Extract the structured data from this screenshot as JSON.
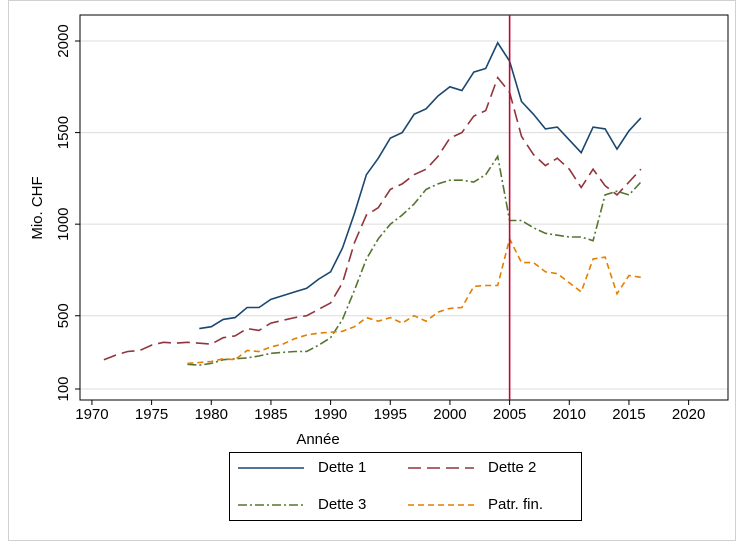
{
  "chart_data": {
    "type": "line",
    "x_label": "Année",
    "y_label": "Mio. CHF",
    "x": [
      1971,
      1972,
      1973,
      1974,
      1975,
      1976,
      1977,
      1978,
      1979,
      1980,
      1981,
      1982,
      1983,
      1984,
      1985,
      1986,
      1987,
      1988,
      1989,
      1990,
      1991,
      1992,
      1993,
      1994,
      1995,
      1996,
      1997,
      1998,
      1999,
      2000,
      2001,
      2002,
      2003,
      2004,
      2005,
      2006,
      2007,
      2008,
      2009,
      2010,
      2011,
      2012,
      2013,
      2014,
      2015,
      2016
    ],
    "series": [
      {
        "name": "Dette 1",
        "color": "#1a476f",
        "dash": "solid",
        "values": [
          null,
          null,
          null,
          null,
          null,
          null,
          null,
          null,
          430,
          440,
          480,
          490,
          545,
          545,
          590,
          610,
          630,
          650,
          700,
          740,
          870,
          1060,
          1270,
          1360,
          1470,
          1500,
          1600,
          1630,
          1700,
          1750,
          1730,
          1830,
          1850,
          1990,
          1890,
          1670,
          1600,
          1520,
          1530,
          1460,
          1390,
          1530,
          1520,
          1410,
          1510,
          1580
        ]
      },
      {
        "name": "Dette 2",
        "color": "#90353b",
        "dash": "longdash",
        "values": [
          260,
          285,
          305,
          310,
          340,
          355,
          350,
          355,
          350,
          345,
          380,
          390,
          430,
          420,
          460,
          475,
          490,
          500,
          535,
          570,
          680,
          900,
          1050,
          1090,
          1190,
          1220,
          1270,
          1300,
          1370,
          1470,
          1500,
          1590,
          1620,
          1800,
          1720,
          1480,
          1380,
          1320,
          1360,
          1300,
          1200,
          1300,
          1210,
          1160,
          1230,
          1300
        ]
      },
      {
        "name": "Dette 3",
        "color": "#55752f",
        "dash": "dashdot",
        "values": [
          null,
          null,
          null,
          null,
          null,
          null,
          null,
          235,
          230,
          240,
          260,
          265,
          270,
          280,
          295,
          300,
          305,
          305,
          340,
          380,
          480,
          640,
          810,
          920,
          1000,
          1050,
          1110,
          1190,
          1220,
          1240,
          1240,
          1230,
          1270,
          1370,
          1020,
          1020,
          980,
          950,
          940,
          930,
          930,
          910,
          1160,
          1180,
          1160,
          1230
        ]
      },
      {
        "name": "Patr. fin.",
        "color": "#e37e00",
        "dash": "dash",
        "values": [
          null,
          null,
          null,
          null,
          null,
          null,
          null,
          240,
          245,
          250,
          265,
          260,
          310,
          305,
          330,
          345,
          375,
          395,
          405,
          410,
          415,
          440,
          490,
          470,
          490,
          460,
          500,
          470,
          520,
          540,
          545,
          660,
          665,
          665,
          920,
          790,
          790,
          740,
          730,
          680,
          630,
          810,
          820,
          620,
          720,
          710
        ]
      }
    ],
    "xlim": [
      1969,
      2023.3
    ],
    "ylim": [
      40,
      2142
    ],
    "xticks": [
      1970,
      1975,
      1980,
      1985,
      1990,
      1995,
      2000,
      2005,
      2010,
      2015,
      2020
    ],
    "yticks": [
      100,
      500,
      1000,
      1500,
      2000
    ],
    "grid": true,
    "legend": "bottom",
    "reference_line": {
      "x": 2005,
      "color": "#c10534"
    }
  }
}
